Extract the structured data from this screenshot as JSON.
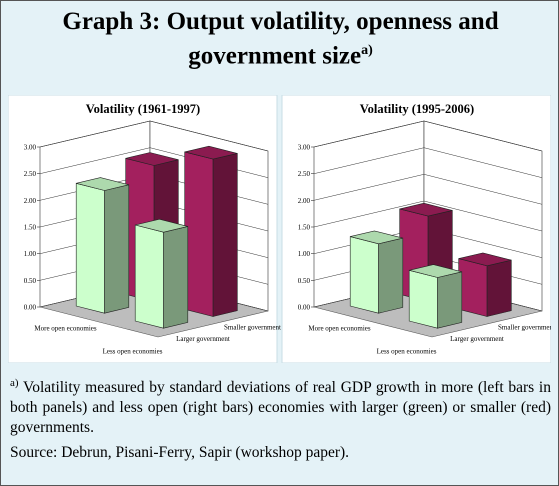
{
  "title": "Graph 3: Output volatility, openness and government size",
  "title_note": "a)",
  "chart_data": [
    {
      "type": "bar3d",
      "title": "Volatility (1961-1997)",
      "categories": [
        "More open economies",
        "Less open economies"
      ],
      "series": [
        {
          "name": "Larger government",
          "color": "#ccffcc",
          "values": [
            2.3,
            1.8
          ]
        },
        {
          "name": "Smaller government",
          "color": "#a3205e",
          "values": [
            2.55,
            2.95
          ]
        }
      ],
      "ylim": [
        0,
        3
      ],
      "yticks": [
        {
          "value": 0,
          "label": "0.00"
        },
        {
          "value": 0.5,
          "label": "0.50"
        },
        {
          "value": 1,
          "label": "1.00"
        },
        {
          "value": 1.5,
          "label": "1.50"
        },
        {
          "value": 2,
          "label": "2.00"
        },
        {
          "value": 2.5,
          "label": "2.50"
        },
        {
          "value": 3,
          "label": "3.00"
        }
      ]
    },
    {
      "type": "bar3d",
      "title": "Volatility (1995-2006)",
      "categories": [
        "More open economies",
        "Less open economies"
      ],
      "series": [
        {
          "name": "Larger government",
          "color": "#ccffcc",
          "values": [
            1.3,
            0.95
          ]
        },
        {
          "name": "Smaller government",
          "color": "#a3205e",
          "values": [
            1.6,
            0.95
          ]
        }
      ],
      "ylim": [
        0,
        3
      ],
      "yticks": [
        {
          "value": 0,
          "label": "0.00"
        },
        {
          "value": 0.5,
          "label": "0.50"
        },
        {
          "value": 1,
          "label": "1.00"
        },
        {
          "value": 1.5,
          "label": "1.50"
        },
        {
          "value": 2,
          "label": "2.00"
        },
        {
          "value": 2.5,
          "label": "2.50"
        },
        {
          "value": 3,
          "label": "3.00"
        }
      ]
    }
  ],
  "footnote": {
    "marker": "a)",
    "text": "Volatility measured by standard deviations of real GDP growth in more (left bars in both panels) and less open (right bars) economies with larger (green) or smaller (red) governments."
  },
  "source": "Source: Debrun, Pisani-Ferry, Sapir (workshop paper)."
}
